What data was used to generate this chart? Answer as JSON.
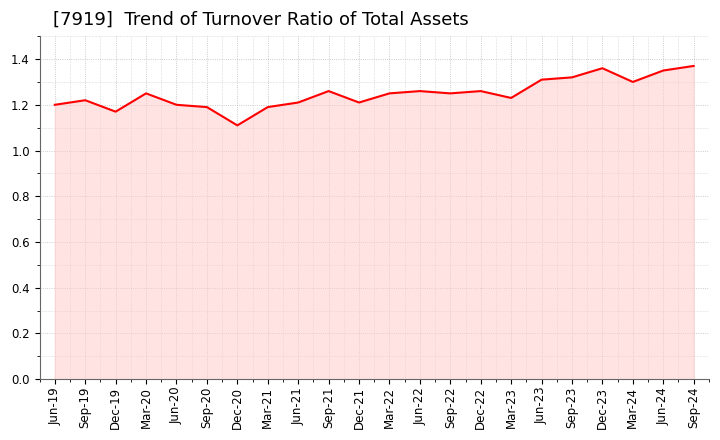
{
  "title": "[7919]  Trend of Turnover Ratio of Total Assets",
  "labels": [
    "Jun-19",
    "Sep-19",
    "Dec-19",
    "Mar-20",
    "Jun-20",
    "Sep-20",
    "Dec-20",
    "Mar-21",
    "Jun-21",
    "Sep-21",
    "Dec-21",
    "Mar-22",
    "Jun-22",
    "Sep-22",
    "Dec-22",
    "Mar-23",
    "Jun-23",
    "Sep-23",
    "Dec-23",
    "Mar-24",
    "Jun-24",
    "Sep-24"
  ],
  "values": [
    1.2,
    1.22,
    1.17,
    1.25,
    1.2,
    1.19,
    1.11,
    1.19,
    1.21,
    1.26,
    1.21,
    1.25,
    1.26,
    1.25,
    1.26,
    1.23,
    1.31,
    1.32,
    1.36,
    1.3,
    1.35,
    1.37
  ],
  "line_color": "#FF0000",
  "fill_color": "#FFCCCC",
  "fill_alpha": 0.55,
  "line_width": 1.5,
  "ylim": [
    0.0,
    1.5
  ],
  "yticks": [
    0.0,
    0.2,
    0.4,
    0.6,
    0.8,
    1.0,
    1.2,
    1.4
  ],
  "background_color": "#FFFFFF",
  "grid_color": "#BBBBBB",
  "title_fontsize": 13,
  "tick_fontsize": 8.5
}
